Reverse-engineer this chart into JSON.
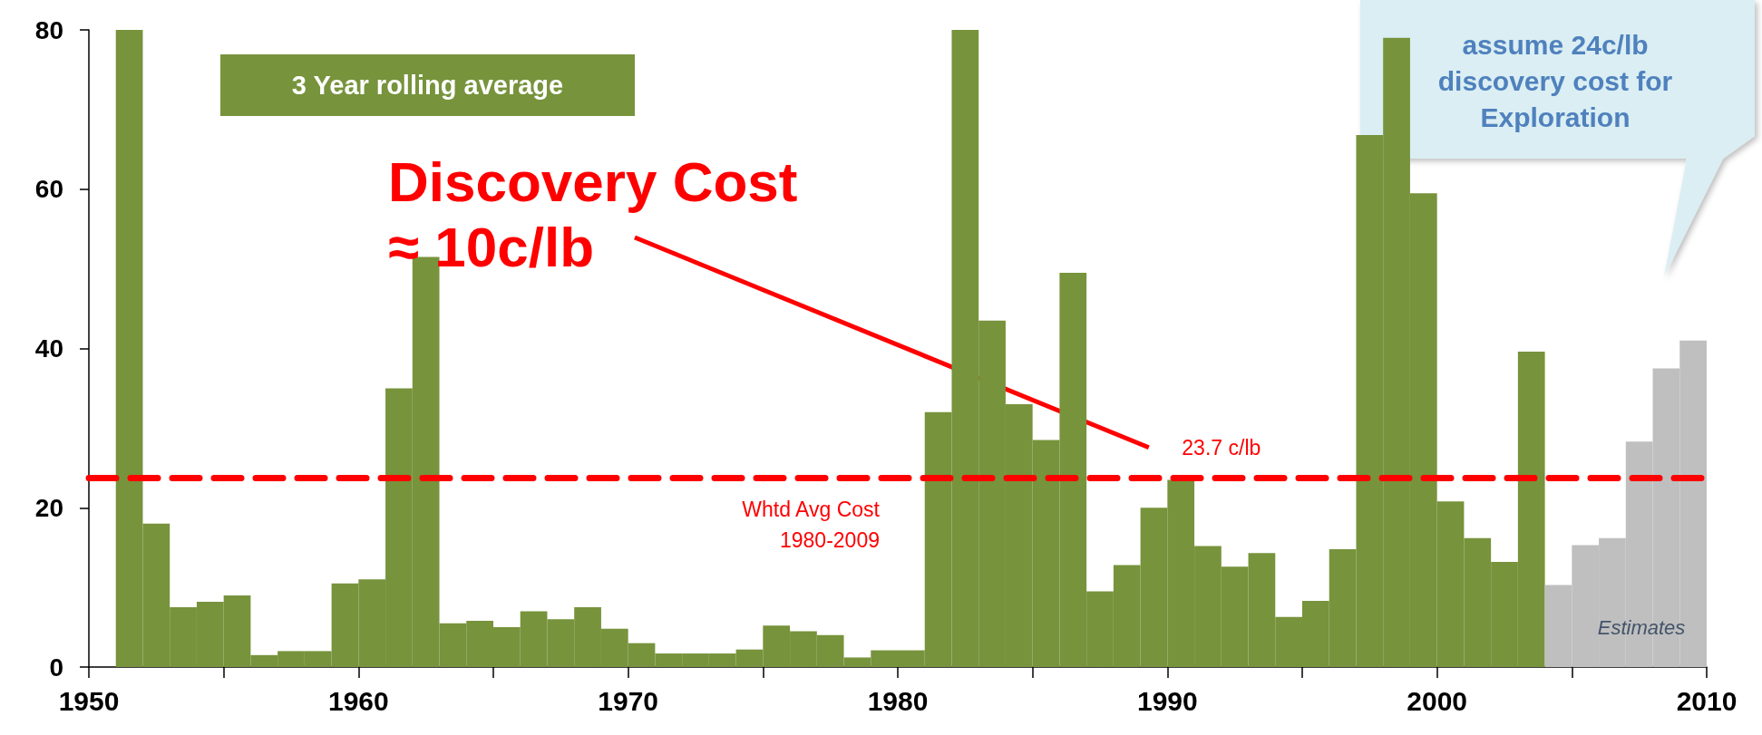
{
  "chart_data": {
    "type": "histogram",
    "subtitle": "3 Year rolling average",
    "bins": [
      1951,
      1952,
      1953,
      1954,
      1955,
      1956,
      1957,
      1958,
      1959,
      1960,
      1961,
      1962,
      1963,
      1964,
      1965,
      1966,
      1967,
      1968,
      1969,
      1970,
      1971,
      1972,
      1973,
      1974,
      1975,
      1976,
      1977,
      1978,
      1979,
      1980,
      1981,
      1982,
      1983,
      1984,
      1985,
      1986,
      1987,
      1988,
      1989,
      1990,
      1991,
      1992,
      1993,
      1994,
      1995,
      1996,
      1997,
      1998,
      1999,
      2000,
      2001,
      2002,
      2003,
      2004,
      2005,
      2006,
      2007,
      2008,
      2009,
      2010
    ],
    "values": [
      80,
      18,
      7.5,
      8.2,
      9,
      1.5,
      2,
      2,
      10.5,
      11,
      35,
      51.5,
      5.5,
      5.8,
      5,
      7,
      6,
      7.5,
      4.8,
      3,
      1.7,
      1.7,
      1.7,
      2.2,
      5.2,
      4.5,
      4,
      1.2,
      2.1,
      2.1,
      32,
      80,
      43.5,
      33,
      28.5,
      49.5,
      9.5,
      12.8,
      20,
      23.5,
      15.2,
      12.6,
      14.3,
      6.3,
      8.3,
      14.8,
      66.8,
      79,
      59.5,
      20.8,
      16.2,
      13.2,
      39.6,
      10.3,
      15.3,
      16.2,
      28.3,
      37.5,
      41
    ],
    "colors": [
      "#77933c",
      "#77933c",
      "#77933c",
      "#77933c",
      "#77933c",
      "#77933c",
      "#77933c",
      "#77933c",
      "#77933c",
      "#77933c",
      "#77933c",
      "#77933c",
      "#77933c",
      "#77933c",
      "#77933c",
      "#77933c",
      "#77933c",
      "#77933c",
      "#77933c",
      "#77933c",
      "#77933c",
      "#77933c",
      "#77933c",
      "#77933c",
      "#77933c",
      "#77933c",
      "#77933c",
      "#77933c",
      "#77933c",
      "#77933c",
      "#77933c",
      "#77933c",
      "#77933c",
      "#77933c",
      "#77933c",
      "#77933c",
      "#77933c",
      "#77933c",
      "#77933c",
      "#77933c",
      "#77933c",
      "#77933c",
      "#77933c",
      "#77933c",
      "#77933c",
      "#77933c",
      "#77933c",
      "#77933c",
      "#77933c",
      "#77933c",
      "#77933c",
      "#77933c",
      "#77933c",
      "#bfbfbf",
      "#bfbfbf",
      "#bfbfbf",
      "#bfbfbf",
      "#bfbfbf",
      "#bfbfbf"
    ],
    "xlim": [
      1950,
      2010
    ],
    "xticks": [
      1950,
      {
        "value": 1955,
        "label": null
      },
      1960,
      {
        "value": 1965,
        "label": null
      },
      1970,
      {
        "value": 1975,
        "label": null
      },
      1980,
      {
        "value": 1985,
        "label": null
      },
      1990,
      {
        "value": 1995,
        "label": null
      },
      2000,
      {
        "value": 2005,
        "label": null
      },
      2010
    ],
    "ylim": [
      0,
      80
    ],
    "yticks": [
      0,
      20,
      40,
      60,
      80
    ],
    "ref_lines": [
      {
        "axis": "y",
        "value": 23.7,
        "label": "23.7 c/lb",
        "color": "#ff0000",
        "line_style": "dashed"
      }
    ],
    "annotations": [
      "Discovery Cost\n≈ 10c/lb",
      "Whtd Avg Cost\n1980-2009",
      "assume 24c/lb\ndiscovery cost for\nExploration",
      "Estimates"
    ]
  }
}
